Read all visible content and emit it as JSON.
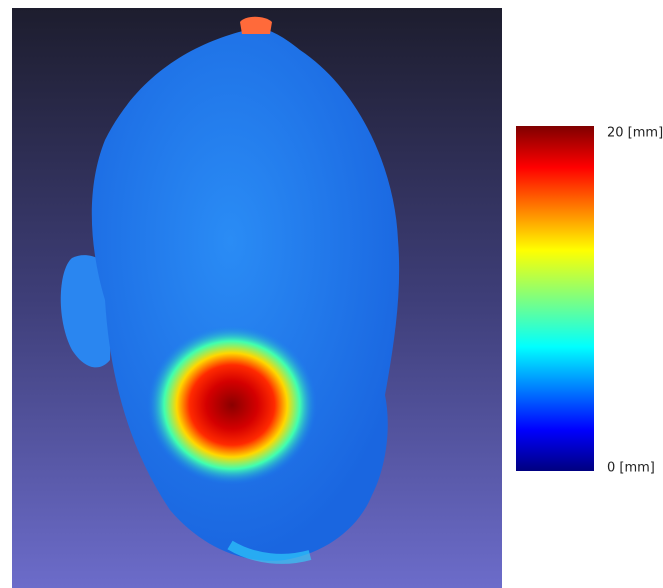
{
  "colorbar": {
    "max_label": "20 [mm]",
    "min_label": "0 [mm]"
  }
}
